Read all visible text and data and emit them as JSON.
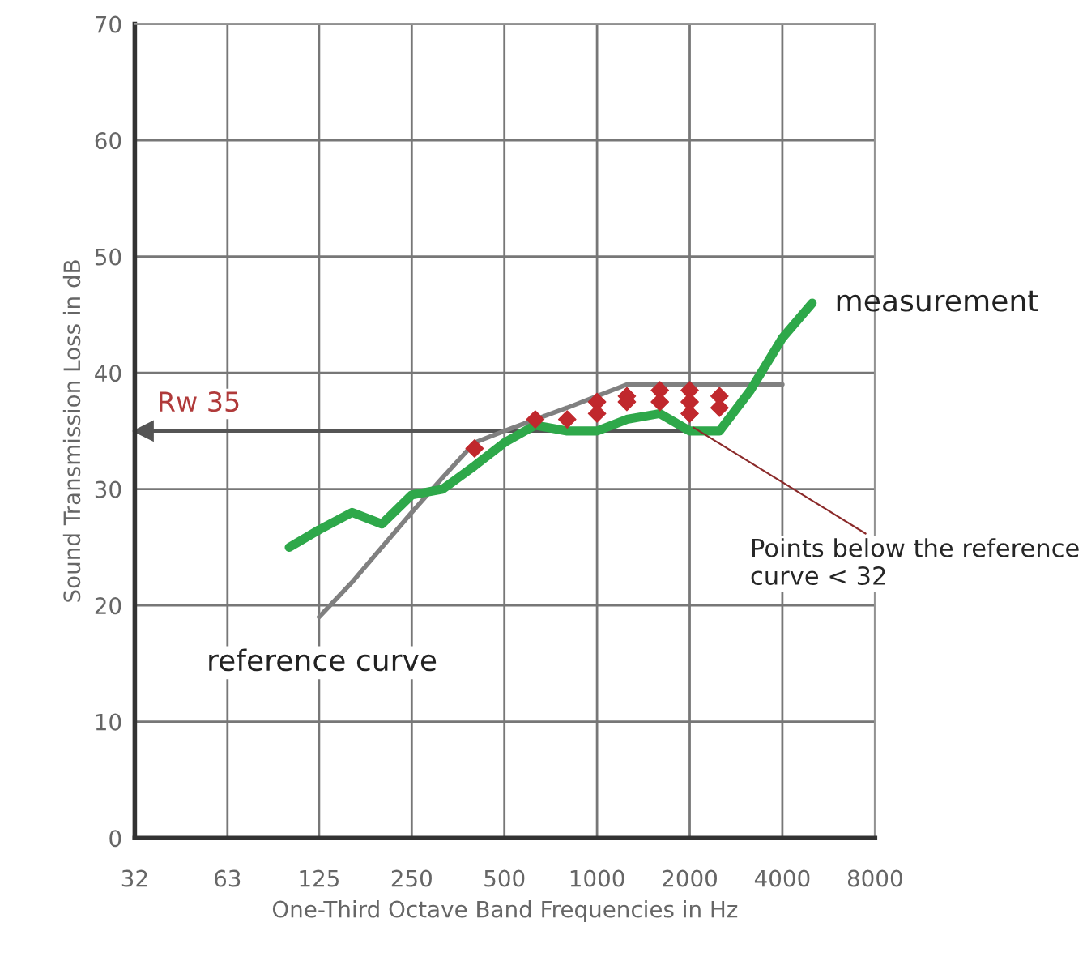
{
  "chart_data": {
    "type": "line",
    "xlabel": "One-Third Octave Band Frequencies in Hz",
    "ylabel": "Sound Transmission Loss in dB",
    "log": "x",
    "xlim": [
      31.5,
      8000
    ],
    "ylim": [
      0,
      70
    ],
    "xticks": [
      {
        "value": 31.5,
        "label": "32"
      },
      63,
      125,
      250,
      500,
      1000,
      2000,
      4000,
      8000
    ],
    "yticks": [
      0,
      10,
      20,
      30,
      40,
      50,
      60,
      70
    ],
    "grid": true,
    "legend": false,
    "series": [
      {
        "name": "reference curve",
        "color": "#808080",
        "x": [
          125,
          160,
          200,
          250,
          315,
          400,
          500,
          630,
          800,
          1000,
          1250,
          1600,
          2000,
          2500,
          3150,
          4000
        ],
        "values": [
          19,
          22,
          25,
          28,
          31,
          34,
          35,
          36,
          37,
          38,
          39,
          39,
          39,
          39,
          39,
          39
        ]
      },
      {
        "name": "measurement",
        "color": "#2ea84a",
        "x": [
          100,
          125,
          160,
          200,
          250,
          315,
          400,
          500,
          630,
          800,
          1000,
          1250,
          1600,
          2000,
          2500,
          3150,
          4000,
          5000
        ],
        "values": [
          25,
          26.5,
          28,
          27,
          29.5,
          30,
          32,
          34,
          35.5,
          35,
          35,
          36,
          36.5,
          35,
          35,
          38.5,
          43,
          46
        ]
      },
      {
        "type": "scatter",
        "marker": "diamond",
        "color": "#c0282d",
        "x": [
          400,
          630,
          800,
          1000,
          1000,
          1250,
          1250,
          1600,
          1600,
          2000,
          2000,
          2000,
          2500,
          2500
        ],
        "values": [
          33.5,
          36,
          36,
          37.5,
          36.5,
          38,
          37.5,
          38.5,
          37.5,
          38.5,
          37.5,
          36.5,
          38,
          37
        ]
      }
    ],
    "ref_lines": [
      {
        "axis": "y",
        "value": 35,
        "label": "Rw 35",
        "color": "#555555"
      }
    ],
    "annotations": [
      {
        "text": "Points below the reference curve < 32",
        "x": 2000,
        "y": 35.5
      }
    ]
  }
}
